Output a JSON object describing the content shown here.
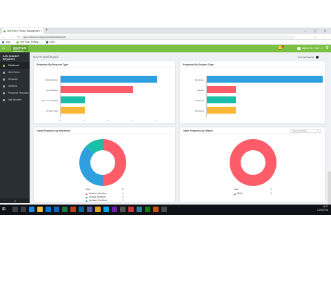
{
  "browser": {
    "tab_title": "OneTrust | Privacy Managemen",
    "new_tab": "+",
    "window_controls": "–  ▢  ✕",
    "nav_buttons": "←  →  ⟳",
    "url": "app.onetrust.com/app/#/pia/dsar/dashboard",
    "addr_icons": "☆  ⋮",
    "bookmarks": [
      "Apps",
      "OneTrust | Privacy...",
      "Excel"
    ]
  },
  "app": {
    "brand": "OneTrust",
    "brand_sub": "PRIVACY MANAGEMENT",
    "user_name": "Agnes Mo - Karl...",
    "accent": "#7ac143"
  },
  "sidebar": {
    "title": "DATA SUBJECT REQUESTS",
    "items": [
      {
        "label": "Dashboard",
        "active": true
      },
      {
        "label": "Web Forms",
        "active": false
      },
      {
        "label": "Requests",
        "active": false
      },
      {
        "label": "Workflow",
        "active": false
      },
      {
        "label": "Response Templates",
        "active": false
      },
      {
        "label": "Intel Bounties",
        "active": false
      }
    ],
    "collapse": "◂"
  },
  "page": {
    "breadcrumb": "DSAR Dashboard",
    "view_dashboard": "View Dashboards"
  },
  "cards": {
    "by_request_type": {
      "title": "Requests By Request Type"
    },
    "by_subject_type": {
      "title": "Requests By Subject Type"
    },
    "open_by_workflow": {
      "title": "Open Requests by Workflow"
    },
    "open_by_status": {
      "title": "Open Requests by Status",
      "filter_placeholder": "Select Workflow"
    }
  },
  "chart_data": [
    {
      "type": "bar",
      "orientation": "horizontal",
      "title": "Requests By Request Type",
      "categories": [
        "Data Deletion",
        "Info Request",
        "Rect a Complaint",
        "Update Data"
      ],
      "values": [
        4,
        3,
        1,
        1
      ],
      "colors": [
        "#2f9fe0",
        "#ff5c69",
        "#19bfa8",
        "#fbb836"
      ],
      "xlim": [
        0,
        4
      ],
      "ticks": [
        "0",
        "1",
        "2",
        "3",
        "4"
      ]
    },
    {
      "type": "bar",
      "orientation": "horizontal",
      "title": "Requests By Subject Type",
      "categories": [
        "Employee",
        "Student",
        "Customer",
        "Prospects"
      ],
      "values": [
        4,
        1,
        1,
        1
      ],
      "colors": [
        "#2f9fe0",
        "#ff5c69",
        "#19bfa8",
        "#fbb836"
      ],
      "xlim": [
        0,
        4
      ]
    },
    {
      "type": "pie",
      "title": "Open Requests by Workflow",
      "total_label": "Total",
      "total": 8,
      "slices": [
        {
          "name": "Deletion Workflow",
          "value": 4,
          "color": "#ff5c69"
        },
        {
          "name": "Access Workflow",
          "value": 3,
          "color": "#2f9fe0"
        },
        {
          "name": "Updated Workflow",
          "value": 1,
          "color": "#19bfa8"
        }
      ]
    },
    {
      "type": "pie",
      "title": "Open Requests by Status",
      "total_label": "Total",
      "total": 1,
      "slices": [
        {
          "name": "NEW",
          "value": 1,
          "color": "#ff5c69"
        }
      ]
    }
  ],
  "taskbar": {
    "start": "⊞",
    "time": "16:27",
    "date": "13/06/2018"
  }
}
